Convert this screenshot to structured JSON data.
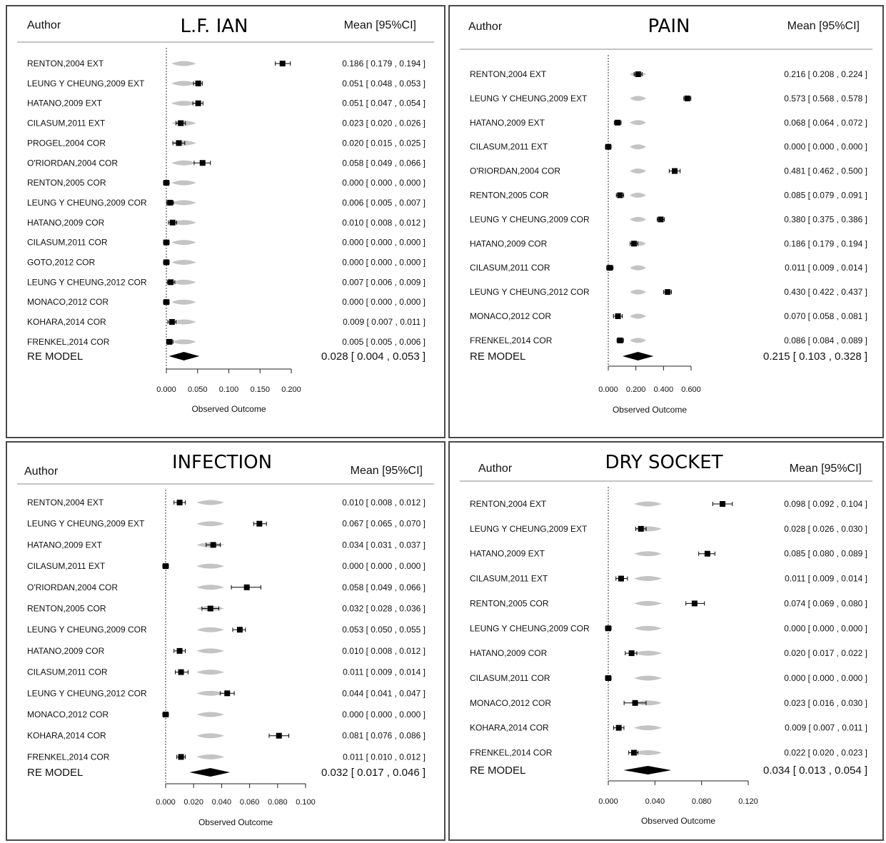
{
  "colors": {
    "shadow": "#c4c4c4",
    "marker": "#000000",
    "frame": "#4a4a4a",
    "rule": "#888888"
  },
  "chart_data": [
    {
      "type": "forest",
      "title": "L.F. IAN",
      "author_header": "Author",
      "mean_header": "Mean [95%CI]",
      "xlabel": "Observed Outcome",
      "xlim": [
        0,
        0.2
      ],
      "ticks": [
        "0.000",
        "0.050",
        "0.100",
        "0.150",
        "0.200"
      ],
      "studies": [
        {
          "label": "RENTON,2004   EXT",
          "value": 0.186,
          "lo": 0.179,
          "hi": 0.194,
          "ci_text": "0.186 [ 0.179 , 0.194 ]"
        },
        {
          "label": "LEUNG Y CHEUNG,2009   EXT",
          "value": 0.051,
          "lo": 0.048,
          "hi": 0.053,
          "ci_text": "0.051 [ 0.048 , 0.053 ]"
        },
        {
          "label": "HATANO,2009   EXT",
          "value": 0.051,
          "lo": 0.047,
          "hi": 0.054,
          "ci_text": "0.051 [ 0.047 , 0.054 ]"
        },
        {
          "label": "CILASUM,2011   EXT",
          "value": 0.023,
          "lo": 0.02,
          "hi": 0.026,
          "ci_text": "0.023 [ 0.020 , 0.026 ]"
        },
        {
          "label": "PROGEL,2004   COR",
          "value": 0.02,
          "lo": 0.015,
          "hi": 0.025,
          "ci_text": "0.020 [ 0.015 , 0.025 ]"
        },
        {
          "label": "O'RIORDAN,2004   COR",
          "value": 0.058,
          "lo": 0.049,
          "hi": 0.066,
          "ci_text": "0.058 [ 0.049 , 0.066 ]"
        },
        {
          "label": "RENTON,2005   COR",
          "value": 0.0,
          "lo": 0.0,
          "hi": 0.0,
          "ci_text": "0.000 [ 0.000 , 0.000 ]"
        },
        {
          "label": "LEUNG Y CHEUNG,2009   COR",
          "value": 0.006,
          "lo": 0.005,
          "hi": 0.007,
          "ci_text": "0.006 [ 0.005 , 0.007 ]"
        },
        {
          "label": "HATANO,2009   COR",
          "value": 0.01,
          "lo": 0.008,
          "hi": 0.012,
          "ci_text": "0.010 [ 0.008 , 0.012 ]"
        },
        {
          "label": "CILASUM,2011   COR",
          "value": 0.0,
          "lo": 0.0,
          "hi": 0.0,
          "ci_text": "0.000 [ 0.000 , 0.000 ]"
        },
        {
          "label": "GOTO,2012   COR",
          "value": 0.0,
          "lo": 0.0,
          "hi": 0.0,
          "ci_text": "0.000 [ 0.000 , 0.000 ]"
        },
        {
          "label": "LEUNG Y CHEUNG,2012   COR",
          "value": 0.007,
          "lo": 0.006,
          "hi": 0.009,
          "ci_text": "0.007 [ 0.006 , 0.009 ]"
        },
        {
          "label": "MONACO,2012   COR",
          "value": 0.0,
          "lo": 0.0,
          "hi": 0.0,
          "ci_text": "0.000 [ 0.000 , 0.000 ]"
        },
        {
          "label": "KOHARA,2014   COR",
          "value": 0.009,
          "lo": 0.007,
          "hi": 0.011,
          "ci_text": "0.009 [ 0.007 , 0.011 ]"
        },
        {
          "label": "FRENKEL,2014   COR",
          "value": 0.005,
          "lo": 0.005,
          "hi": 0.006,
          "ci_text": "0.005 [ 0.005 , 0.006 ]"
        }
      ],
      "re_model": {
        "label": "RE MODEL",
        "value": 0.028,
        "lo": 0.004,
        "hi": 0.053,
        "ci_text": "0.028 [ 0.004 , 0.053 ]"
      }
    },
    {
      "type": "forest",
      "title": "PAIN",
      "author_header": "Author",
      "mean_header": "Mean [95%CI]",
      "xlabel": "Observed Outcome",
      "xlim": [
        0,
        0.6
      ],
      "ticks": [
        "0.000",
        "0.200",
        "0.400",
        "0.600"
      ],
      "studies": [
        {
          "label": "RENTON,2004   EXT",
          "value": 0.216,
          "lo": 0.208,
          "hi": 0.224,
          "ci_text": "0.216 [ 0.208 , 0.224 ]"
        },
        {
          "label": "LEUNG Y CHEUNG,2009   EXT",
          "value": 0.573,
          "lo": 0.568,
          "hi": 0.578,
          "ci_text": "0.573 [ 0.568 , 0.578 ]"
        },
        {
          "label": "HATANO,2009   EXT",
          "value": 0.068,
          "lo": 0.064,
          "hi": 0.072,
          "ci_text": "0.068 [ 0.064 , 0.072 ]"
        },
        {
          "label": "CILASUM,2011   EXT",
          "value": 0.0,
          "lo": 0.0,
          "hi": 0.0,
          "ci_text": "0.000 [ 0.000 , 0.000 ]"
        },
        {
          "label": "O'RIORDAN,2004   COR",
          "value": 0.481,
          "lo": 0.462,
          "hi": 0.5,
          "ci_text": "0.481 [ 0.462 , 0.500 ]"
        },
        {
          "label": "RENTON,2005   COR",
          "value": 0.085,
          "lo": 0.079,
          "hi": 0.091,
          "ci_text": "0.085 [ 0.079 , 0.091 ]"
        },
        {
          "label": "LEUNG Y CHEUNG,2009   COR",
          "value": 0.38,
          "lo": 0.375,
          "hi": 0.386,
          "ci_text": "0.380 [ 0.375 , 0.386 ]"
        },
        {
          "label": "HATANO,2009   COR",
          "value": 0.186,
          "lo": 0.179,
          "hi": 0.194,
          "ci_text": "0.186 [ 0.179 , 0.194 ]"
        },
        {
          "label": "CILASUM,2011   COR",
          "value": 0.011,
          "lo": 0.009,
          "hi": 0.014,
          "ci_text": "0.011 [ 0.009 , 0.014 ]"
        },
        {
          "label": "LEUNG Y CHEUNG,2012   COR",
          "value": 0.43,
          "lo": 0.422,
          "hi": 0.437,
          "ci_text": "0.430 [ 0.422 , 0.437 ]"
        },
        {
          "label": "MONACO,2012   COR",
          "value": 0.07,
          "lo": 0.058,
          "hi": 0.081,
          "ci_text": "0.070 [ 0.058 , 0.081 ]"
        },
        {
          "label": "FRENKEL,2014   COR",
          "value": 0.086,
          "lo": 0.084,
          "hi": 0.089,
          "ci_text": "0.086 [ 0.084 , 0.089 ]"
        }
      ],
      "re_model": {
        "label": "RE MODEL",
        "value": 0.215,
        "lo": 0.103,
        "hi": 0.328,
        "ci_text": "0.215 [ 0.103 , 0.328 ]"
      }
    },
    {
      "type": "forest",
      "title": "INFECTION",
      "author_header": "Author",
      "mean_header": "Mean [95%CI]",
      "xlabel": "Observed Outcome",
      "xlim": [
        0,
        0.1
      ],
      "ticks": [
        "0.000",
        "0.020",
        "0.040",
        "0.060",
        "0.080",
        "0.100"
      ],
      "studies": [
        {
          "label": "RENTON,2004   EXT",
          "value": 0.01,
          "lo": 0.008,
          "hi": 0.012,
          "ci_text": "0.010 [ 0.008 , 0.012 ]"
        },
        {
          "label": "LEUNG Y CHEUNG,2009   EXT",
          "value": 0.067,
          "lo": 0.065,
          "hi": 0.07,
          "ci_text": "0.067 [ 0.065 , 0.070 ]"
        },
        {
          "label": "HATANO,2009   EXT",
          "value": 0.034,
          "lo": 0.031,
          "hi": 0.037,
          "ci_text": "0.034 [ 0.031 , 0.037 ]"
        },
        {
          "label": "CILASUM,2011   EXT",
          "value": 0.0,
          "lo": 0.0,
          "hi": 0.0,
          "ci_text": "0.000 [ 0.000 , 0.000 ]"
        },
        {
          "label": "O'RIORDAN,2004   COR",
          "value": 0.058,
          "lo": 0.049,
          "hi": 0.066,
          "ci_text": "0.058 [ 0.049 , 0.066 ]"
        },
        {
          "label": "RENTON,2005   COR",
          "value": 0.032,
          "lo": 0.028,
          "hi": 0.036,
          "ci_text": "0.032 [ 0.028 , 0.036 ]"
        },
        {
          "label": "LEUNG Y CHEUNG,2009   COR",
          "value": 0.053,
          "lo": 0.05,
          "hi": 0.055,
          "ci_text": "0.053 [ 0.050 , 0.055 ]"
        },
        {
          "label": "HATANO,2009   COR",
          "value": 0.01,
          "lo": 0.008,
          "hi": 0.012,
          "ci_text": "0.010 [ 0.008 , 0.012 ]"
        },
        {
          "label": "CILASUM,2011   COR",
          "value": 0.011,
          "lo": 0.009,
          "hi": 0.014,
          "ci_text": "0.011 [ 0.009 , 0.014 ]"
        },
        {
          "label": "LEUNG Y CHEUNG,2012   COR",
          "value": 0.044,
          "lo": 0.041,
          "hi": 0.047,
          "ci_text": "0.044 [ 0.041 , 0.047 ]"
        },
        {
          "label": "MONACO,2012   COR",
          "value": 0.0,
          "lo": 0.0,
          "hi": 0.0,
          "ci_text": "0.000 [ 0.000 , 0.000 ]"
        },
        {
          "label": "KOHARA,2014   COR",
          "value": 0.081,
          "lo": 0.076,
          "hi": 0.086,
          "ci_text": "0.081 [ 0.076 , 0.086 ]"
        },
        {
          "label": "FRENKEL,2014   COR",
          "value": 0.011,
          "lo": 0.01,
          "hi": 0.012,
          "ci_text": "0.011 [ 0.010 , 0.012 ]"
        }
      ],
      "re_model": {
        "label": "RE MODEL",
        "value": 0.032,
        "lo": 0.017,
        "hi": 0.046,
        "ci_text": "0.032 [ 0.017 , 0.046 ]"
      }
    },
    {
      "type": "forest",
      "title": "DRY SOCKET",
      "author_header": "Author",
      "mean_header": "Mean [95%CI]",
      "xlabel": "Observed Outcome",
      "xlim": [
        0,
        0.12
      ],
      "ticks": [
        "0.000",
        "0.040",
        "0.080",
        "0.120"
      ],
      "studies": [
        {
          "label": "RENTON,2004   EXT",
          "value": 0.098,
          "lo": 0.092,
          "hi": 0.104,
          "ci_text": "0.098 [ 0.092 , 0.104 ]"
        },
        {
          "label": "LEUNG Y CHEUNG,2009   EXT",
          "value": 0.028,
          "lo": 0.026,
          "hi": 0.03,
          "ci_text": "0.028 [ 0.026 , 0.030 ]"
        },
        {
          "label": "HATANO,2009   EXT",
          "value": 0.085,
          "lo": 0.08,
          "hi": 0.089,
          "ci_text": "0.085 [ 0.080 , 0.089 ]"
        },
        {
          "label": "CILASUM,2011   EXT",
          "value": 0.011,
          "lo": 0.009,
          "hi": 0.014,
          "ci_text": "0.011 [ 0.009 , 0.014 ]"
        },
        {
          "label": "RENTON,2005   COR",
          "value": 0.074,
          "lo": 0.069,
          "hi": 0.08,
          "ci_text": "0.074 [ 0.069 , 0.080 ]"
        },
        {
          "label": "LEUNG Y CHEUNG,2009   COR",
          "value": 0.0,
          "lo": 0.0,
          "hi": 0.0,
          "ci_text": "0.000 [ 0.000 , 0.000 ]"
        },
        {
          "label": "HATANO,2009   COR",
          "value": 0.02,
          "lo": 0.017,
          "hi": 0.022,
          "ci_text": "0.020 [ 0.017 , 0.022 ]"
        },
        {
          "label": "CILASUM,2011   COR",
          "value": 0.0,
          "lo": 0.0,
          "hi": 0.0,
          "ci_text": "0.000 [ 0.000 , 0.000 ]"
        },
        {
          "label": "MONACO,2012   COR",
          "value": 0.023,
          "lo": 0.016,
          "hi": 0.03,
          "ci_text": "0.023 [ 0.016 , 0.030 ]"
        },
        {
          "label": "KOHARA,2014   COR",
          "value": 0.009,
          "lo": 0.007,
          "hi": 0.011,
          "ci_text": "0.009 [ 0.007 , 0.011 ]"
        },
        {
          "label": "FRENKEL,2014   COR",
          "value": 0.022,
          "lo": 0.02,
          "hi": 0.023,
          "ci_text": "0.022 [ 0.020 , 0.023 ]"
        }
      ],
      "re_model": {
        "label": "RE MODEL",
        "value": 0.034,
        "lo": 0.013,
        "hi": 0.054,
        "ci_text": "0.034 [ 0.013 , 0.054 ]"
      }
    }
  ]
}
